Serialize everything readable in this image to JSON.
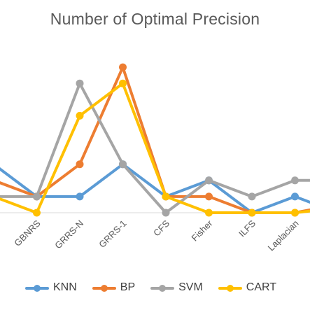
{
  "chart_data": {
    "type": "line",
    "title": "Number of Optimal Precision",
    "categories": [
      "",
      "GBNRS",
      "GRRS-N",
      "GRRS-1",
      "CFS",
      "Fisher",
      "ILFS",
      "Laplacian",
      ""
    ],
    "series": [
      {
        "name": "KNN",
        "color": "#5B9BD5",
        "values": [
          3,
          1,
          1,
          3,
          1,
          2,
          0,
          1,
          0
        ]
      },
      {
        "name": "BP",
        "color": "#ED7D31",
        "values": [
          2,
          1,
          3,
          9,
          1,
          1,
          0,
          0,
          0.5
        ]
      },
      {
        "name": "SVM",
        "color": "#A5A5A5",
        "values": [
          1,
          1,
          8,
          3,
          0,
          2,
          1,
          2,
          2
        ]
      },
      {
        "name": "CART",
        "color": "#FFC000",
        "values": [
          1,
          0,
          6,
          8,
          1,
          0,
          0,
          0,
          0.3
        ]
      }
    ],
    "ylim": [
      0,
      9.5
    ],
    "grid": false,
    "legend_position": "bottom"
  }
}
